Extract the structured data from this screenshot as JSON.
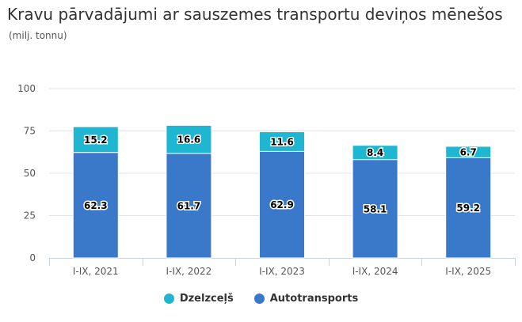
{
  "chart_data": {
    "type": "bar",
    "stacked": true,
    "title": "Kravu pārvadājumi ar sauszemes transportu deviņos mēnešos",
    "subtitle": "(milj. tonnu)",
    "categories": [
      "I-IX, 2021",
      "I-IX, 2022",
      "I-IX, 2023",
      "I-IX, 2024",
      "I-IX, 2025"
    ],
    "series": [
      {
        "name": "Autotransports",
        "color": "#3a78c9",
        "values": [
          62.3,
          61.7,
          62.9,
          58.1,
          59.2
        ]
      },
      {
        "name": "Dzelzceļš",
        "color": "#1eb6d0",
        "values": [
          15.2,
          16.6,
          11.6,
          8.4,
          6.7
        ]
      }
    ],
    "legend": [
      {
        "name": "Dzelzceļš",
        "color": "#1eb6d0"
      },
      {
        "name": "Autotransports",
        "color": "#3a78c9"
      }
    ],
    "ylim": [
      0,
      100
    ],
    "yticks": [
      0,
      25,
      50,
      75,
      100
    ],
    "grid": true,
    "legend_position": "bottom-center"
  }
}
